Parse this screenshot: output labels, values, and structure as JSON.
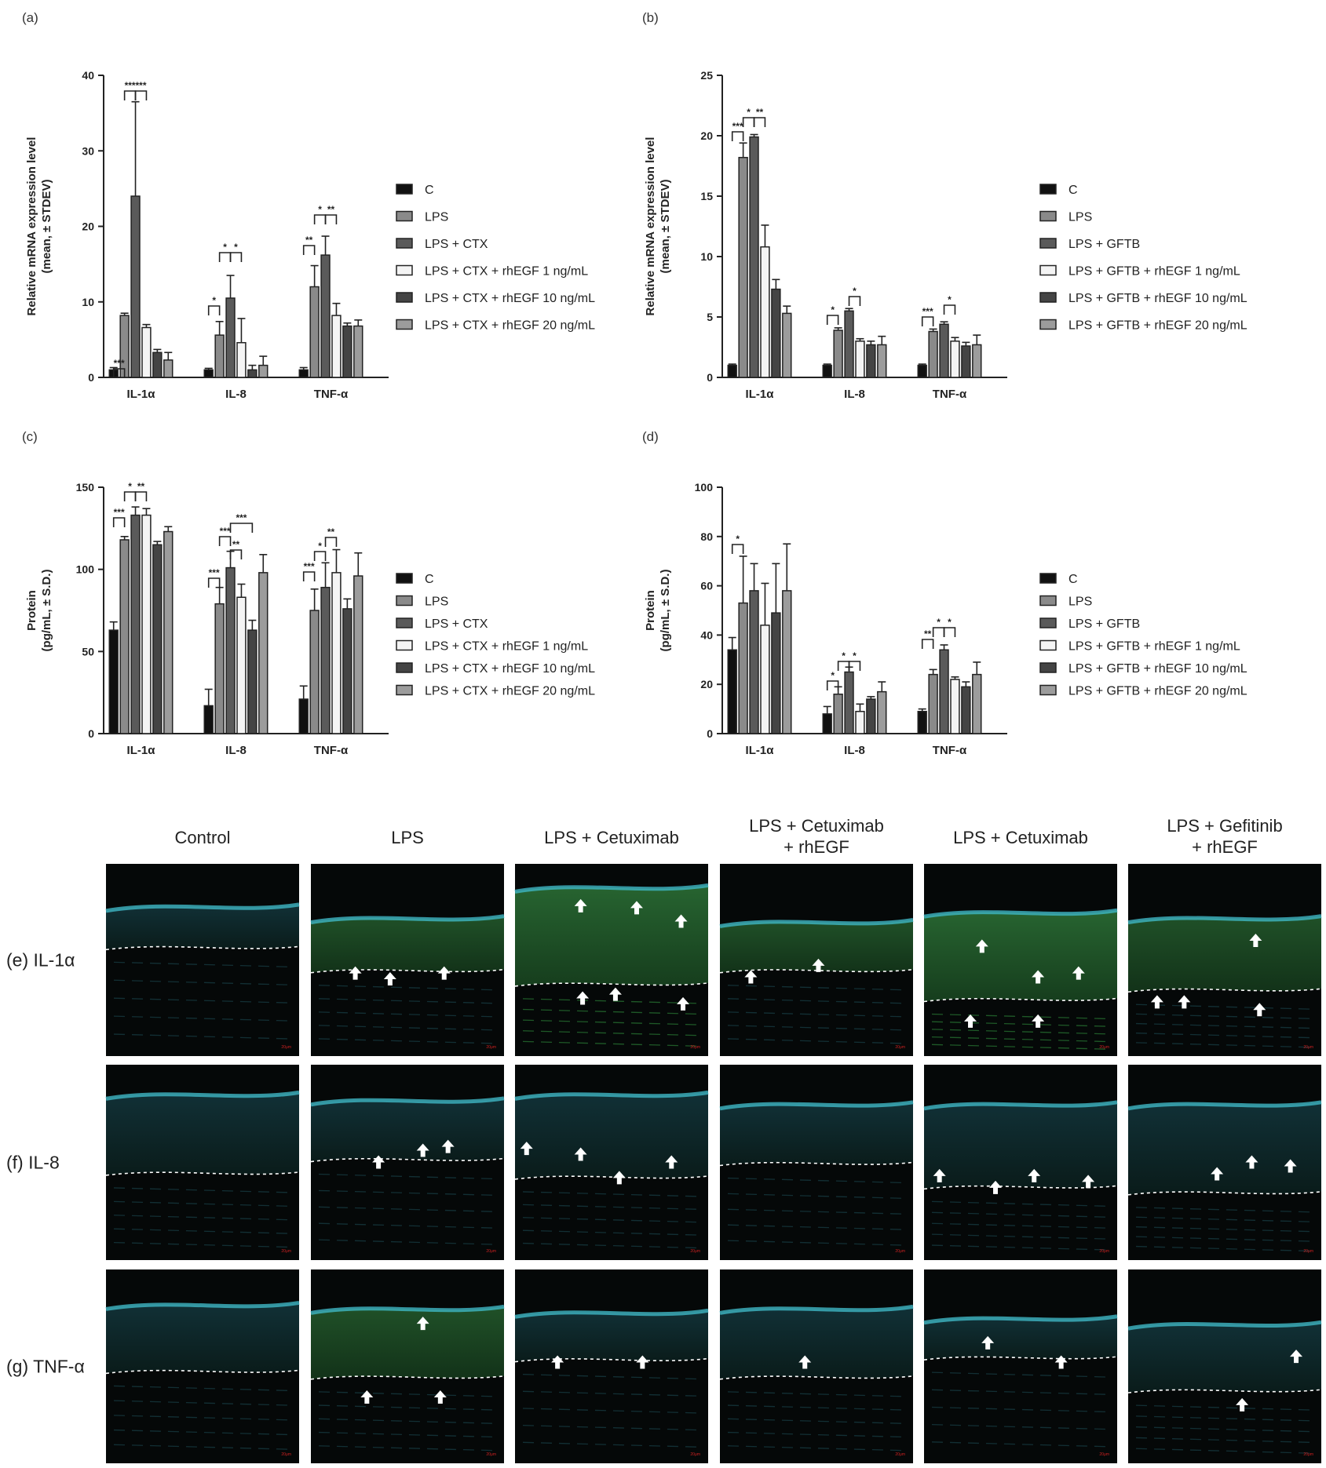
{
  "panel_labels": [
    "(a)",
    "(b)",
    "(c)",
    "(d)"
  ],
  "chart_data": [
    {
      "panel": "(a)",
      "type": "bar",
      "ylabel": "Relative mRNA expression level (mean, ± STDEV)",
      "ylim": [
        0,
        40
      ],
      "yticks": [
        0,
        10,
        20,
        30,
        40
      ],
      "categories": [
        "IL-1α",
        "IL-8",
        "TNF-α"
      ],
      "series": [
        {
          "name": "C",
          "values": [
            1,
            1,
            1
          ],
          "errors": [
            0.3,
            0.2,
            0.3
          ]
        },
        {
          "name": "LPS",
          "values": [
            8.2,
            5.6,
            12
          ],
          "errors": [
            0.3,
            1.8,
            2.8
          ]
        },
        {
          "name": "LPS + CTX",
          "values": [
            24,
            10.5,
            16.2
          ],
          "errors": [
            12.5,
            3,
            2.5
          ]
        },
        {
          "name": "LPS + CTX + rhEGF 1 ng/mL",
          "values": [
            6.6,
            4.6,
            8.2
          ],
          "errors": [
            0.4,
            3.2,
            1.6
          ]
        },
        {
          "name": "LPS + CTX + rhEGF 10 ng/mL",
          "values": [
            3.3,
            1,
            6.8
          ],
          "errors": [
            0.4,
            0.6,
            0.4
          ]
        },
        {
          "name": "LPS + CTX + rhEGF 20 ng/mL",
          "values": [
            2.3,
            1.6,
            6.8
          ],
          "errors": [
            1,
            1.2,
            0.8
          ]
        }
      ],
      "significance": [
        "***",
        "***",
        "***",
        "*",
        "*",
        "*",
        "**",
        "*",
        "**"
      ]
    },
    {
      "panel": "(b)",
      "type": "bar",
      "ylabel": "Relative mRNA expression level (mean, ± STDEV)",
      "ylim": [
        0,
        25
      ],
      "yticks": [
        0,
        5,
        10,
        15,
        20,
        25
      ],
      "categories": [
        "IL-1α",
        "IL-8",
        "TNF-α"
      ],
      "series": [
        {
          "name": "C",
          "values": [
            1,
            1,
            1
          ],
          "errors": [
            0.1,
            0.1,
            0.1
          ]
        },
        {
          "name": "LPS",
          "values": [
            18.2,
            3.9,
            3.8
          ],
          "errors": [
            1.2,
            0.2,
            0.2
          ]
        },
        {
          "name": "LPS + GFTB",
          "values": [
            19.9,
            5.5,
            4.4
          ],
          "errors": [
            0.2,
            0.2,
            0.2
          ]
        },
        {
          "name": "LPS + GFTB + rhEGF 1 ng/mL",
          "values": [
            10.8,
            3,
            3
          ],
          "errors": [
            1.8,
            0.2,
            0.3
          ]
        },
        {
          "name": "LPS + GFTB + rhEGF 10 ng/mL",
          "values": [
            7.3,
            2.7,
            2.6
          ],
          "errors": [
            0.8,
            0.3,
            0.3
          ]
        },
        {
          "name": "LPS + GFTB + rhEGF 20 ng/mL",
          "values": [
            5.3,
            2.7,
            2.7
          ],
          "errors": [
            0.6,
            0.7,
            0.8
          ]
        }
      ],
      "significance": [
        "***",
        "*",
        "**",
        "*",
        "*",
        "***",
        "*"
      ]
    },
    {
      "panel": "(c)",
      "type": "bar",
      "ylabel": "Protein (pg/mL, ± S.D.)",
      "ylim": [
        0,
        150
      ],
      "yticks": [
        0,
        50,
        100,
        150
      ],
      "categories": [
        "IL-1α",
        "IL-8",
        "TNF-α"
      ],
      "series": [
        {
          "name": "C",
          "values": [
            63,
            17,
            21
          ],
          "errors": [
            5,
            10,
            8
          ]
        },
        {
          "name": "LPS",
          "values": [
            118,
            79,
            75
          ],
          "errors": [
            2,
            10,
            13
          ]
        },
        {
          "name": "LPS + CTX",
          "values": [
            133,
            101,
            89
          ],
          "errors": [
            5,
            10,
            15
          ]
        },
        {
          "name": "LPS + CTX + rhEGF 1 ng/mL",
          "values": [
            133,
            83,
            98
          ],
          "errors": [
            4,
            8,
            14
          ]
        },
        {
          "name": "LPS + CTX + rhEGF 10 ng/mL",
          "values": [
            115,
            63,
            76
          ],
          "errors": [
            2,
            6,
            6
          ]
        },
        {
          "name": "LPS + CTX + rhEGF 20 ng/mL",
          "values": [
            123,
            98,
            96
          ],
          "errors": [
            3,
            11,
            14
          ]
        }
      ],
      "significance": [
        "***",
        "*",
        "**",
        "***",
        "***",
        "**",
        "***",
        "***",
        "*",
        "**"
      ]
    },
    {
      "panel": "(d)",
      "type": "bar",
      "ylabel": "Protein (pg/mL, ± S.D.)",
      "ylim": [
        0,
        100
      ],
      "yticks": [
        0,
        20,
        40,
        60,
        80,
        100
      ],
      "categories": [
        "IL-1α",
        "IL-8",
        "TNF-α"
      ],
      "series": [
        {
          "name": "C",
          "values": [
            34,
            8,
            9
          ],
          "errors": [
            5,
            3,
            1
          ]
        },
        {
          "name": "LPS",
          "values": [
            53,
            16,
            24
          ],
          "errors": [
            19,
            3,
            2
          ]
        },
        {
          "name": "LPS + GFTB",
          "values": [
            58,
            25,
            34
          ],
          "errors": [
            11,
            2,
            2
          ]
        },
        {
          "name": "LPS + GFTB + rhEGF 1 ng/mL",
          "values": [
            44,
            9,
            22
          ],
          "errors": [
            17,
            3,
            1
          ]
        },
        {
          "name": "LPS + GFTB + rhEGF 10 ng/mL",
          "values": [
            49,
            14,
            19
          ],
          "errors": [
            20,
            1,
            2
          ]
        },
        {
          "name": "LPS + GFTB + rhEGF 20 ng/mL",
          "values": [
            58,
            17,
            24
          ],
          "errors": [
            19,
            4,
            5
          ]
        }
      ],
      "significance": [
        "*",
        "*",
        "*",
        "*",
        "**",
        "*",
        "*"
      ]
    }
  ],
  "series_colors": [
    "#111111",
    "#8a8a8a",
    "#5a5a5a",
    "#f4f4f4",
    "#444444",
    "#9c9c9c"
  ],
  "microscopy": {
    "columns": [
      "Control",
      "LPS",
      "LPS + Cetuximab",
      "LPS + Cetuximab\n+ rhEGF",
      "LPS + Cetuximab",
      "LPS + Gefitinib\n+ rhEGF"
    ],
    "rows": [
      "(e) IL-1α",
      "(f) IL-8",
      "(g) TNF-α"
    ],
    "scale_bar_text": "20μm",
    "arrow_icon": "white-arrow-up-icon"
  }
}
